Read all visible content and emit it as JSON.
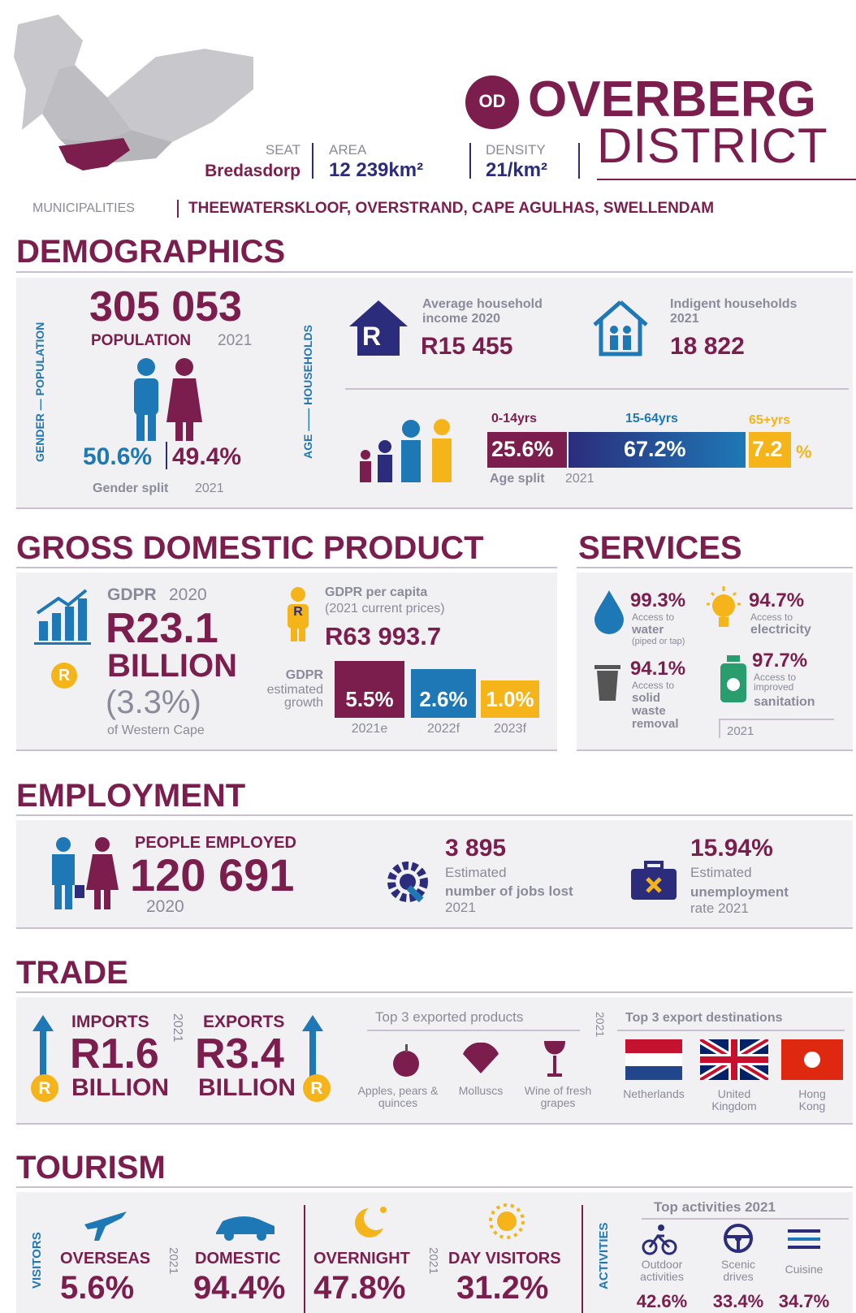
{
  "header": {
    "badge": "OD",
    "title1": "OVERBERG",
    "title2": "DISTRICT",
    "seat_label": "SEAT",
    "seat": "Bredasdorp",
    "area_label": "AREA",
    "area": "12 239km²",
    "density_label": "DENSITY",
    "density": "21/km²",
    "municipalities_label": "MUNICIPALITIES",
    "municipalities": "THEEWATERSKLOOF, OVERSTRAND, CAPE AGULHAS, SWELLENDAM"
  },
  "currency_symbol": "R",
  "demographics": {
    "title": "DEMOGRAPHICS",
    "side_label_top": "GENDER — POPULATION",
    "side_label_bottom": "AGE —— HOUSEHOLDS",
    "population": "305 053",
    "population_label": "POPULATION",
    "population_year": "2021",
    "male": "50.6%",
    "female": "49.4%",
    "gender_split_label": "Gender split",
    "gender_year": "2021",
    "income_label": "Average household income",
    "income_year": "2020",
    "income": "R15 455",
    "indigent_label": "Indigent households",
    "indigent_year": "2021",
    "indigent": "18 822",
    "age_groups": [
      {
        "label": "0-14yrs",
        "value": "25.6%"
      },
      {
        "label": "15-64yrs",
        "value": "67.2%"
      },
      {
        "label": "65+yrs",
        "value": "7.2"
      }
    ],
    "age_unit": "%",
    "age_split_label": "Age split",
    "age_year": "2021"
  },
  "gdp": {
    "title": "GROSS DOMESTIC PRODUCT",
    "gdpr_label": "GDPR",
    "gdpr_year": "2020",
    "gdpr_value": "R23.1",
    "gdpr_unit": "BILLION",
    "gdpr_share": "(3.3%)",
    "share_label": "of Western Cape",
    "per_capita_label": "GDPR per capita",
    "per_capita_note": "(2021 current prices)",
    "per_capita": "R63 993.7",
    "growth_label_1": "GDPR",
    "growth_label_2": "estimated growth",
    "growth": [
      {
        "value": "5.5%",
        "year": "2021e"
      },
      {
        "value": "2.6%",
        "year": "2022f"
      },
      {
        "value": "1.0%",
        "year": "2023f"
      }
    ]
  },
  "services": {
    "title": "SERVICES",
    "items": [
      {
        "value": "99.3%",
        "label": "Access to",
        "service": "water",
        "note": "(piped or tap)"
      },
      {
        "value": "94.7%",
        "label": "Access to",
        "service": "electricity"
      },
      {
        "value": "94.1%",
        "label": "Access to",
        "service": "solid waste removal"
      },
      {
        "value": "97.7%",
        "label": "Access to improved",
        "service": "sanitation"
      }
    ],
    "year": "2021"
  },
  "employment": {
    "title": "EMPLOYMENT",
    "employed_label": "PEOPLE EMPLOYED",
    "employed": "120 691",
    "employed_year": "2020",
    "jobs_lost": "3 895",
    "jobs_lost_label": "Estimated",
    "jobs_lost_desc": "number of jobs lost",
    "jobs_lost_year": "2021",
    "unemployment": "15.94%",
    "unemployment_label": "Estimated",
    "unemployment_desc": "unemployment",
    "unemployment_tail": "rate 2021"
  },
  "trade": {
    "title": "TRADE",
    "imports_label": "IMPORTS",
    "imports": "R1.6",
    "imports_unit": "BILLION",
    "year": "2021",
    "exports_label": "EXPORTS",
    "exports": "R3.4",
    "exports_unit": "BILLION",
    "products_title": "Top 3 exported products",
    "products": [
      "Apples, pears & quinces",
      "Molluscs",
      "Wine of fresh grapes"
    ],
    "products_year": "2021",
    "destinations_title": "Top 3 export destinations",
    "destinations": [
      "Netherlands",
      "United Kingdom",
      "Hong Kong"
    ]
  },
  "tourism": {
    "title": "TOURISM",
    "visitors_label": "VISITORS",
    "overseas_label": "OVERSEAS",
    "overseas": "5.6%",
    "year": "2021",
    "domestic_label": "DOMESTIC",
    "domestic": "94.4%",
    "overnight_label": "OVERNIGHT",
    "overnight": "47.8%",
    "day_label": "DAY VISITORS",
    "day": "31.2%",
    "activities_label": "ACTIVITIES",
    "activities_title": "Top activities 2021",
    "activities": [
      {
        "label": "Outdoor activities",
        "value": "42.6%"
      },
      {
        "label": "Scenic drives",
        "value": "33.4%"
      },
      {
        "label": "Cuisine",
        "value": "34.7%"
      }
    ]
  }
}
